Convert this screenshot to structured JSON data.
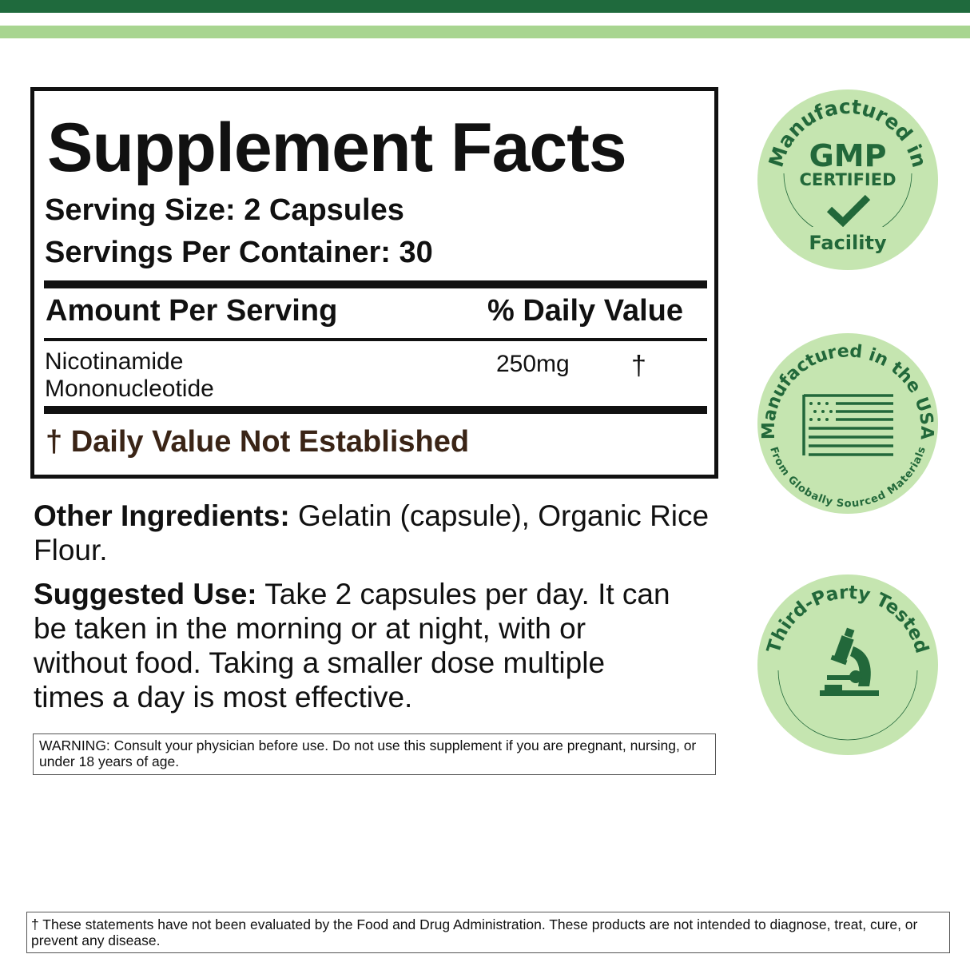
{
  "colors": {
    "dark_green": "#1f6a3d",
    "light_green": "#a8d590",
    "badge_bg": "#c5e5b0",
    "badge_fg": "#22683a"
  },
  "facts": {
    "title": "Supplement Facts",
    "serving_size": "Serving Size: 2 Capsules",
    "servings_per_container": "Servings Per Container:  30",
    "amount_header": "Amount Per Serving",
    "dv_header": "% Daily Value",
    "ingredient": {
      "name_line1": "Nicotinamide",
      "name_line2": "Mononucleotide",
      "amount": "250mg",
      "dv": "†"
    },
    "footnote": "† Daily Value Not Established"
  },
  "other_ingredients": {
    "label": "Other Ingredients:",
    "text": " Gelatin (capsule), Organic Rice Flour."
  },
  "suggested_use": {
    "label": "Suggested Use:",
    "text": " Take 2 capsules per day. It can be taken in the morning or at night, with or without food. Taking a smaller dose multiple times a day is most effective."
  },
  "warning": "WARNING: Consult your physician before use. Do not use this supplement if you are pregnant, nursing, or under 18 years of age.",
  "disclaimer": "† These statements have not been evaluated by the Food and Drug Administration. These products are not intended to diagnose, treat, cure, or prevent any disease.",
  "badges": {
    "gmp": {
      "arc_text": "Manufactured in",
      "big": "GMP",
      "sub": "CERTIFIED",
      "bottom": "Facility",
      "icon": "checkmark-icon"
    },
    "usa": {
      "arc_text": "Manufactured in the USA",
      "bottom": "From Globally Sourced Materials",
      "icon": "us-flag-icon"
    },
    "tested": {
      "arc_text": "Third-Party Tested",
      "icon": "microscope-icon"
    }
  }
}
